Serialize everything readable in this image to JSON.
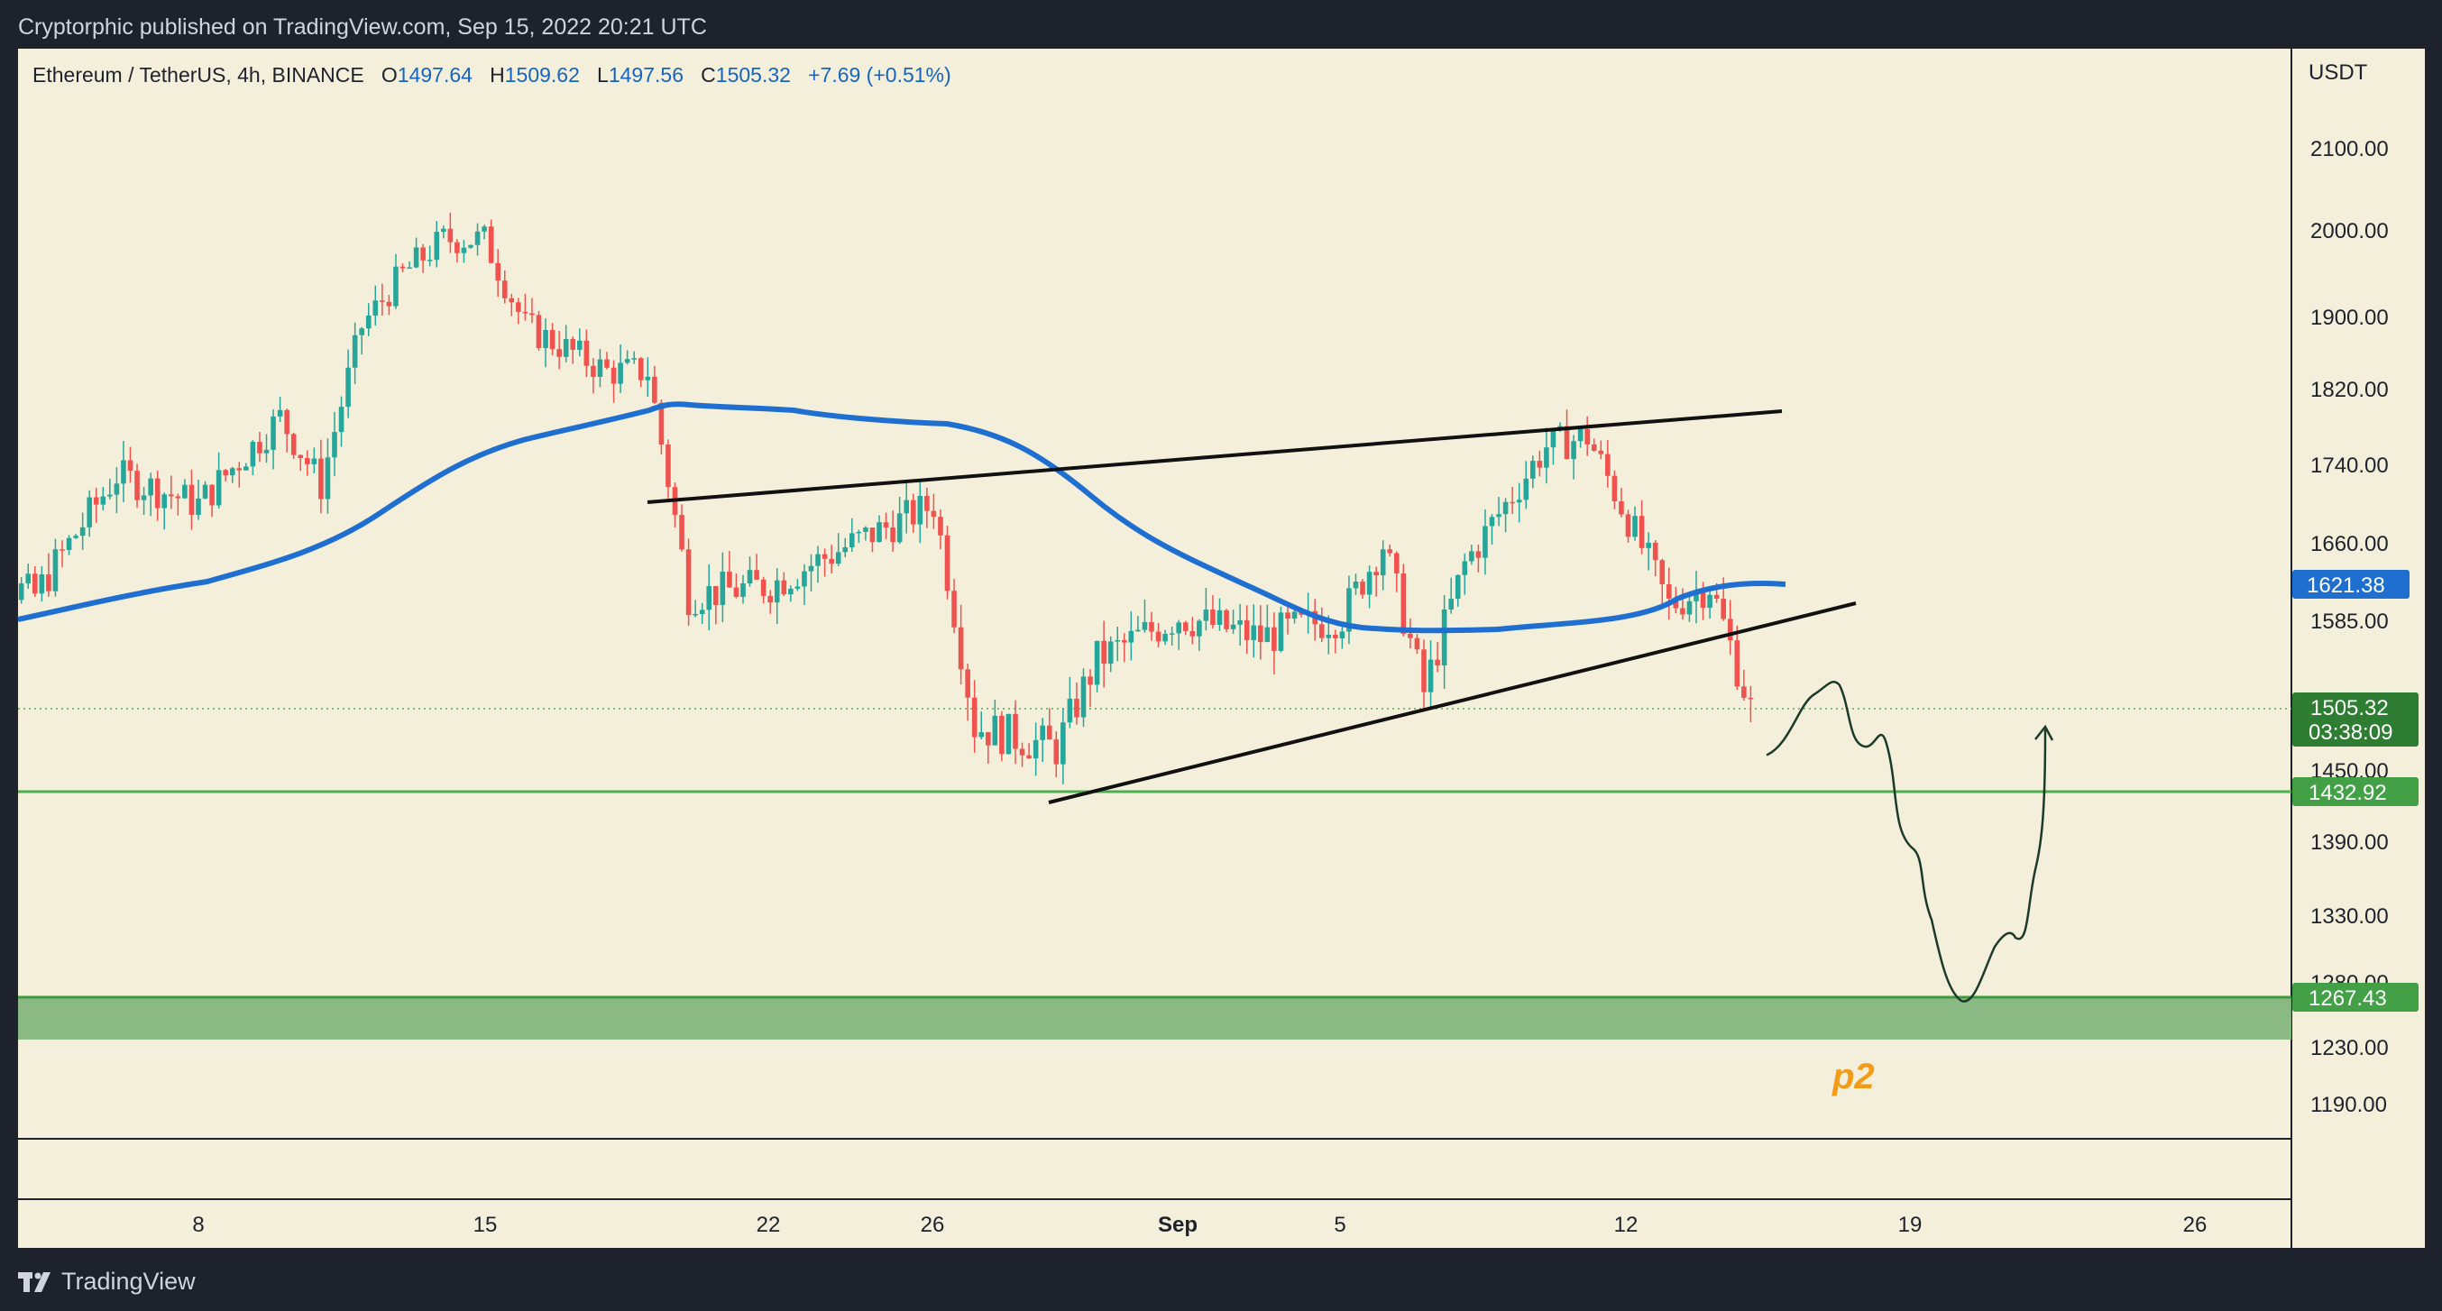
{
  "header": {
    "published": "Cryptorphic published on TradingView.com, Sep 15, 2022 20:21 UTC"
  },
  "symbol": {
    "name": "Ethereum / TetherUS, 4h, BINANCE",
    "o_label": "O",
    "o": "1497.64",
    "h_label": "H",
    "h": "1509.62",
    "l_label": "L",
    "l": "1497.56",
    "c_label": "C",
    "c": "1505.32",
    "change": "+7.69 (+0.51%)"
  },
  "price_axis": {
    "unit": "USDT",
    "ticks": [
      "2100.00",
      "2000.00",
      "1900.00",
      "1820.00",
      "1740.00",
      "1660.00",
      "1585.00",
      "1450.00",
      "1390.00",
      "1330.00",
      "1280.00",
      "1230.00",
      "1190.00"
    ]
  },
  "time_axis": {
    "ticks": [
      "8",
      "15",
      "22",
      "26",
      "Sep",
      "5",
      "12",
      "19",
      "26"
    ]
  },
  "tags": {
    "ma_value": "1621.38",
    "last_price": "1505.32",
    "countdown": "03:38:09",
    "support_1": "1432.92",
    "support_2": "1267.43"
  },
  "annotation": {
    "text": "p2"
  },
  "footer": {
    "brand": "TradingView"
  },
  "colors": {
    "background": "#f3efda",
    "up": "#26a69a",
    "down": "#ef5350",
    "ma": "#1f6fd1",
    "support": "#4caf50",
    "zone": "#7fb27a",
    "annotation": "#f39a17"
  },
  "chart_data": {
    "type": "candlestick",
    "symbol": "ETH/USDT",
    "timeframe": "4h",
    "exchange": "BINANCE",
    "y_range": [
      1150,
      2150
    ],
    "x_range": [
      "Aug 2",
      "Sep 28"
    ],
    "ohlc_last": {
      "open": 1497.64,
      "high": 1509.62,
      "low": 1497.56,
      "close": 1505.32
    },
    "price_path_approx": [
      {
        "date": "Aug 2",
        "close": 1640
      },
      {
        "date": "Aug 4",
        "close": 1610
      },
      {
        "date": "Aug 6",
        "close": 1730
      },
      {
        "date": "Aug 8",
        "close": 1700
      },
      {
        "date": "Aug 10",
        "close": 1790
      },
      {
        "date": "Aug 11",
        "close": 1720
      },
      {
        "date": "Aug 12",
        "close": 1890
      },
      {
        "date": "Aug 13",
        "close": 1950
      },
      {
        "date": "Aug 14",
        "close": 1990
      },
      {
        "date": "Aug 15",
        "close": 1990
      },
      {
        "date": "Aug 16",
        "close": 1890
      },
      {
        "date": "Aug 18",
        "close": 1840
      },
      {
        "date": "Aug 19",
        "close": 1840
      },
      {
        "date": "Aug 20",
        "close": 1610
      },
      {
        "date": "Aug 22",
        "close": 1620
      },
      {
        "date": "Aug 24",
        "close": 1660
      },
      {
        "date": "Aug 26",
        "close": 1700
      },
      {
        "date": "Aug 27",
        "close": 1490
      },
      {
        "date": "Aug 29",
        "close": 1470
      },
      {
        "date": "Aug 30",
        "close": 1550
      },
      {
        "date": "Sep 1",
        "close": 1590
      },
      {
        "date": "Sep 3",
        "close": 1570
      },
      {
        "date": "Sep 5",
        "close": 1590
      },
      {
        "date": "Sep 6",
        "close": 1660
      },
      {
        "date": "Sep 7",
        "close": 1520
      },
      {
        "date": "Sep 8",
        "close": 1640
      },
      {
        "date": "Sep 10",
        "close": 1760
      },
      {
        "date": "Sep 11",
        "close": 1770
      },
      {
        "date": "Sep 13",
        "close": 1600
      },
      {
        "date": "Sep 14",
        "close": 1620
      },
      {
        "date": "Sep 15",
        "close": 1505.32
      }
    ],
    "moving_average": {
      "current": 1621.38
    },
    "horizontal_levels": [
      1432.92,
      1267.43
    ],
    "support_zone": [
      1230,
      1267.43
    ],
    "trendlines": [
      {
        "from": {
          "date": "Aug 19",
          "price": 1710
        },
        "to": {
          "date": "Sep 15",
          "price": 1830
        }
      },
      {
        "from": {
          "date": "Aug 29",
          "price": 1425
        },
        "to": {
          "date": "Sep 16",
          "price": 1600
        }
      }
    ],
    "projection": {
      "low": 1262,
      "then": 1490
    },
    "annotation": "p2"
  }
}
